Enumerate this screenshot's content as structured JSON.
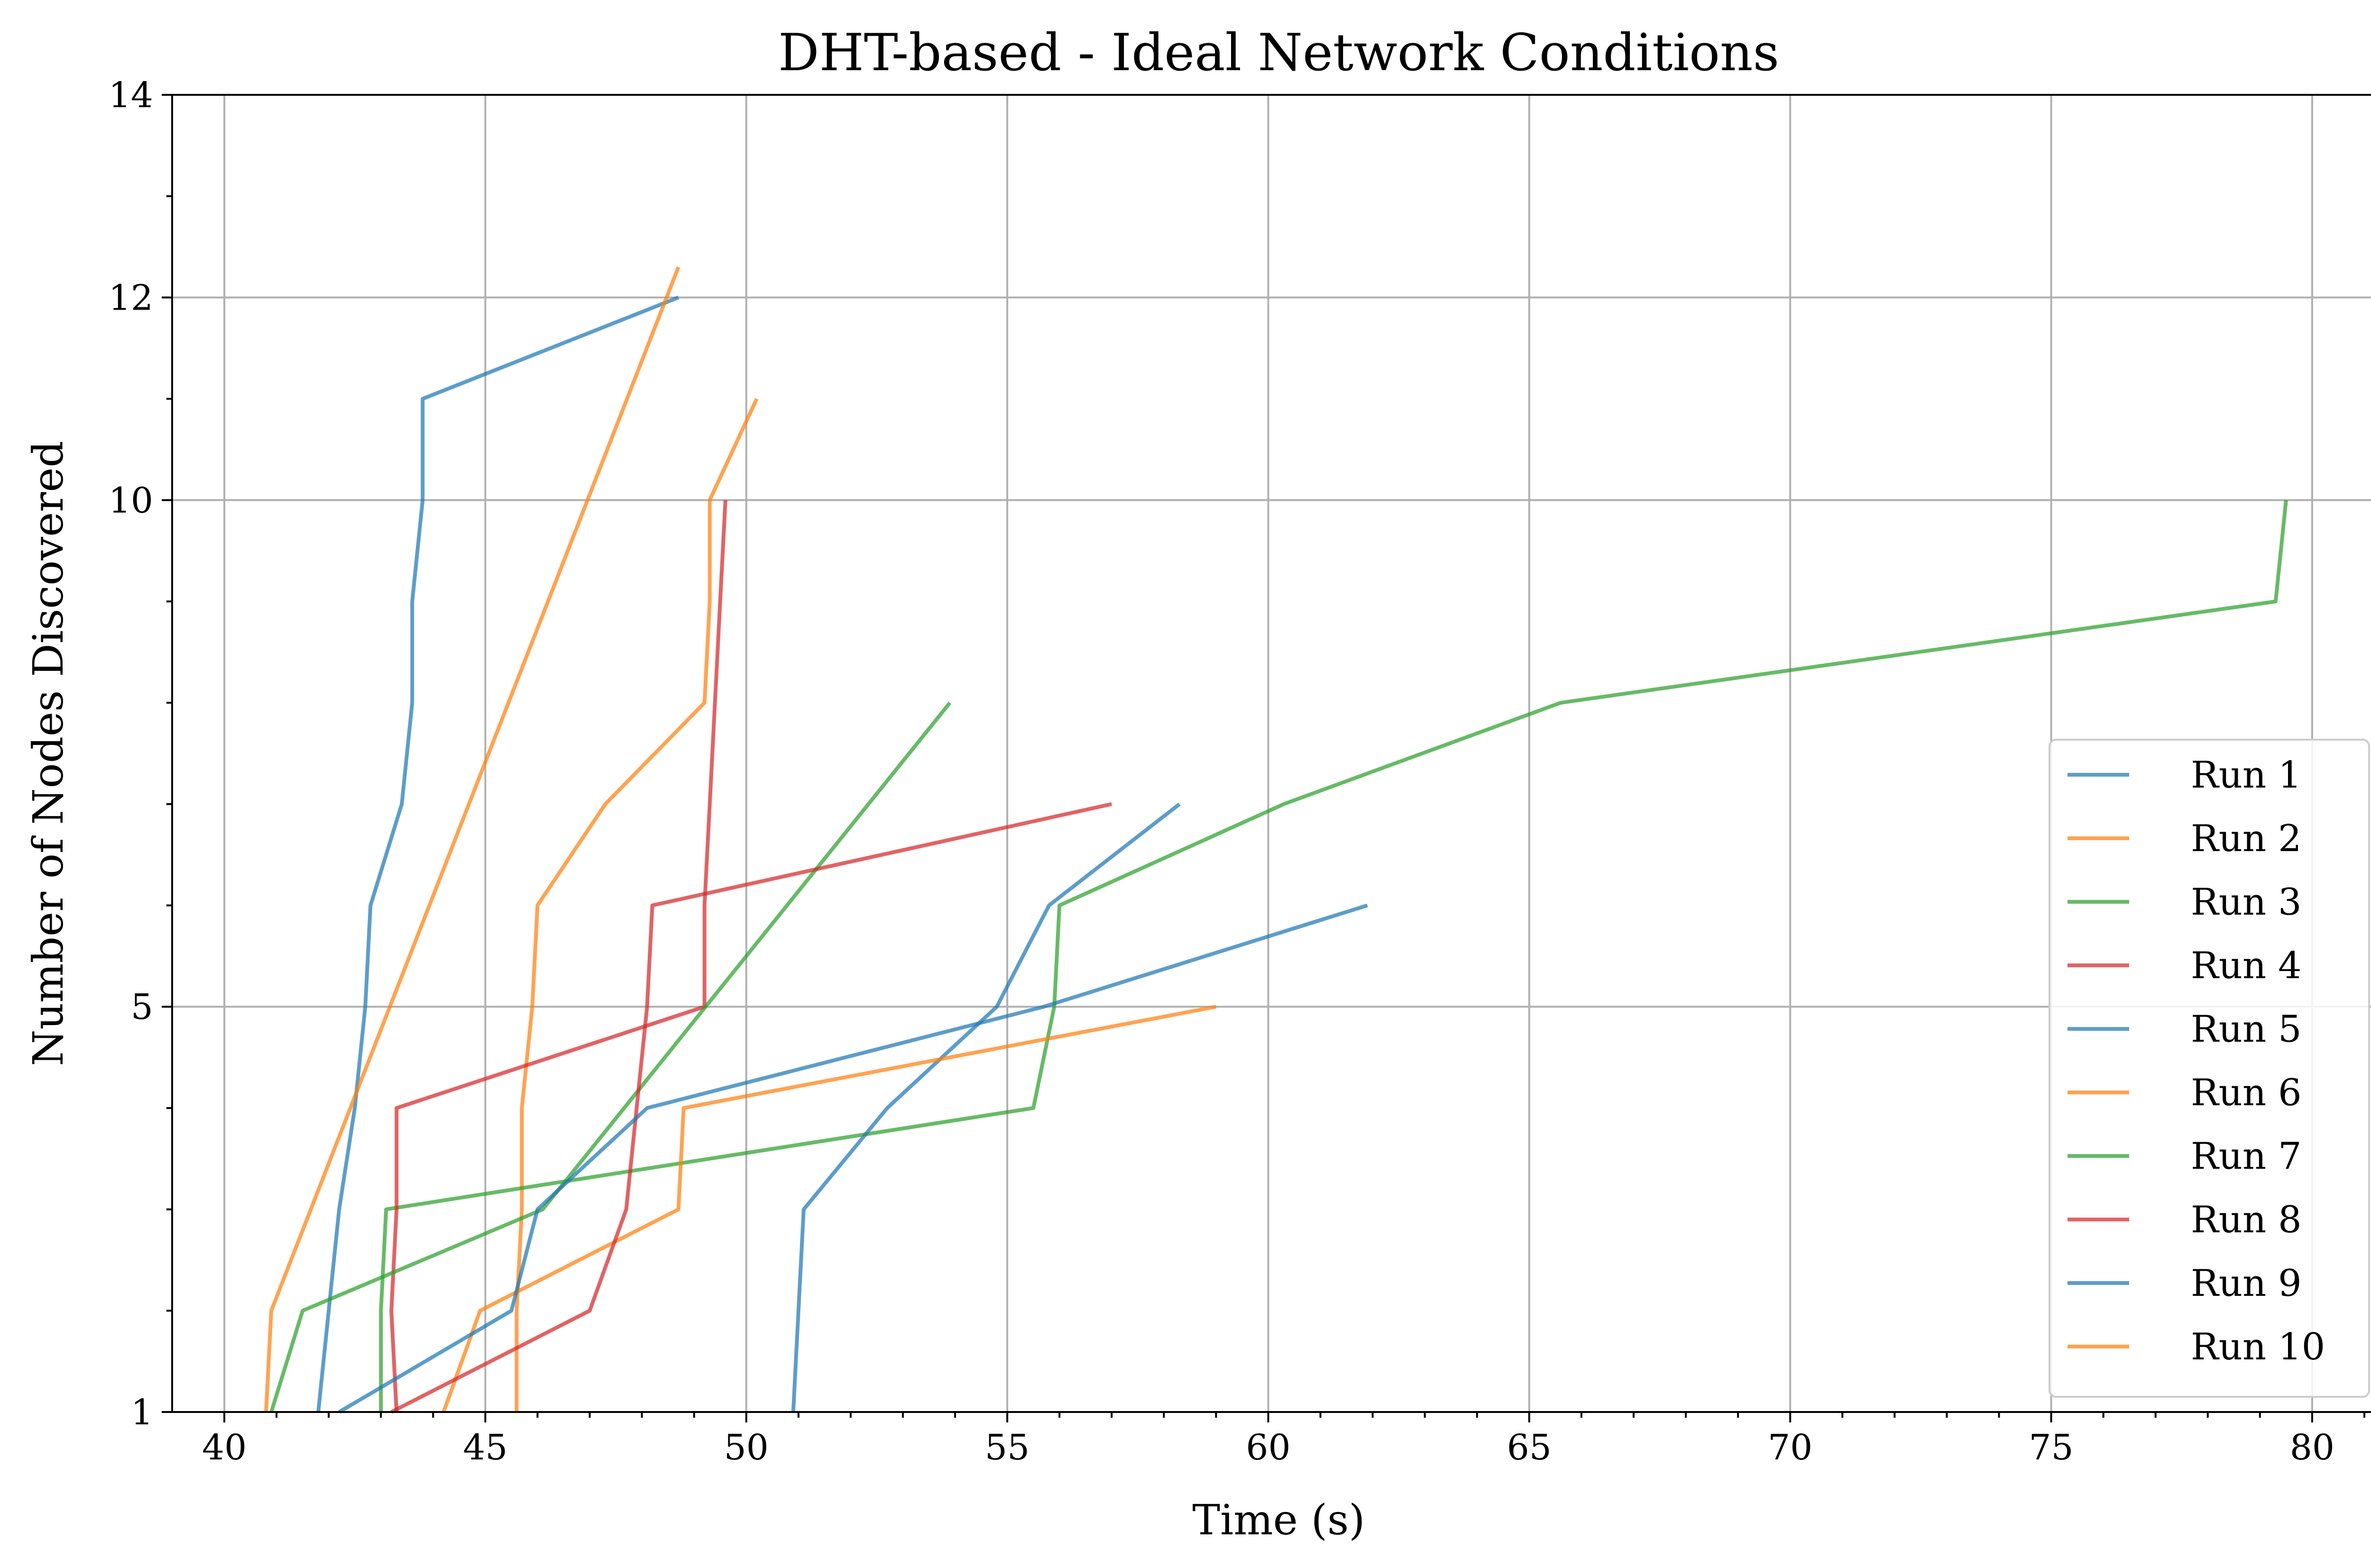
{
  "chart_data": {
    "type": "line",
    "title": "DHT-based - Ideal Network Conditions",
    "xlabel": "Time (s)",
    "ylabel": "Number of Nodes Discovered",
    "xlim": [
      39,
      81.4
    ],
    "ylim": [
      1,
      14
    ],
    "x_ticks": [
      40,
      45,
      50,
      55,
      60,
      65,
      70,
      75,
      80
    ],
    "x_minor_ticks": [
      41,
      42,
      43,
      44,
      46,
      47,
      48,
      49,
      51,
      52,
      53,
      54,
      56,
      57,
      58,
      59,
      61,
      62,
      63,
      64,
      66,
      67,
      68,
      69,
      71,
      72,
      73,
      74,
      76,
      77,
      78,
      79,
      81
    ],
    "y_ticks": [
      1,
      5,
      10,
      12,
      14
    ],
    "y_minor_ticks": [
      2,
      3,
      4,
      6,
      7,
      8,
      9,
      11,
      13
    ],
    "grid": true,
    "legend_position": "lower right",
    "series": [
      {
        "name": "Run 1",
        "color": "#1f77b4",
        "points": [
          [
            41.8,
            1
          ],
          [
            42.0,
            2
          ],
          [
            42.2,
            3
          ],
          [
            42.5,
            4
          ],
          [
            42.7,
            5
          ],
          [
            42.8,
            6
          ],
          [
            43.4,
            7
          ],
          [
            43.6,
            8
          ],
          [
            43.6,
            9
          ],
          [
            43.8,
            10
          ],
          [
            43.8,
            11
          ],
          [
            48.7,
            12
          ]
        ]
      },
      {
        "name": "Run 2",
        "color": "#ff7f0e",
        "points": [
          [
            45.6,
            1
          ],
          [
            45.6,
            2
          ],
          [
            45.7,
            3
          ],
          [
            45.7,
            4
          ],
          [
            45.9,
            5
          ],
          [
            46.0,
            6
          ],
          [
            47.3,
            7
          ],
          [
            49.2,
            8
          ],
          [
            49.3,
            9
          ],
          [
            49.3,
            10
          ],
          [
            50.2,
            11
          ]
        ]
      },
      {
        "name": "Run 3",
        "color": "#2ca02c",
        "points": [
          [
            43.0,
            1
          ],
          [
            43.0,
            2
          ],
          [
            43.1,
            3
          ],
          [
            55.5,
            4
          ],
          [
            55.9,
            5
          ],
          [
            56.0,
            6
          ],
          [
            60.3,
            7
          ],
          [
            65.6,
            8
          ],
          [
            79.3,
            9
          ],
          [
            79.5,
            10
          ]
        ]
      },
      {
        "name": "Run 4",
        "color": "#d62728",
        "points": [
          [
            43.3,
            1
          ],
          [
            43.2,
            2
          ],
          [
            43.3,
            3
          ],
          [
            43.3,
            4
          ],
          [
            49.2,
            5
          ],
          [
            49.2,
            6
          ],
          [
            49.3,
            7
          ],
          [
            49.4,
            8
          ],
          [
            49.5,
            9
          ],
          [
            49.6,
            10
          ]
        ]
      },
      {
        "name": "Run 5",
        "color": "#1f77b4",
        "points": [
          [
            50.9,
            1
          ],
          [
            51.0,
            2
          ],
          [
            51.1,
            3
          ],
          [
            52.7,
            4
          ],
          [
            54.8,
            5
          ],
          [
            55.8,
            6
          ],
          [
            58.3,
            7
          ]
        ]
      },
      {
        "name": "Run 6",
        "color": "#ff7f0e",
        "points": [
          [
            44.2,
            1
          ],
          [
            44.9,
            2
          ],
          [
            48.7,
            3
          ],
          [
            48.8,
            4
          ],
          [
            59.0,
            5
          ]
        ]
      },
      {
        "name": "Run 7",
        "color": "#2ca02c",
        "points": [
          [
            40.9,
            1
          ],
          [
            41.5,
            2
          ],
          [
            46.1,
            3
          ],
          [
            53.9,
            8
          ]
        ]
      },
      {
        "name": "Run 8",
        "color": "#d62728",
        "points": [
          [
            43.2,
            1
          ],
          [
            47.0,
            2
          ],
          [
            47.7,
            3
          ],
          [
            47.9,
            4
          ],
          [
            48.1,
            5
          ],
          [
            48.2,
            6
          ],
          [
            57.0,
            7
          ]
        ]
      },
      {
        "name": "Run 9",
        "color": "#1f77b4",
        "points": [
          [
            42.2,
            1
          ],
          [
            45.5,
            2
          ],
          [
            46.0,
            3
          ],
          [
            48.1,
            4
          ],
          [
            55.7,
            5
          ],
          [
            61.9,
            6
          ]
        ]
      },
      {
        "name": "Run 10",
        "color": "#ff7f0e",
        "points": [
          [
            40.8,
            1
          ],
          [
            40.9,
            2
          ],
          [
            48.7,
            12.3
          ]
        ]
      }
    ]
  }
}
